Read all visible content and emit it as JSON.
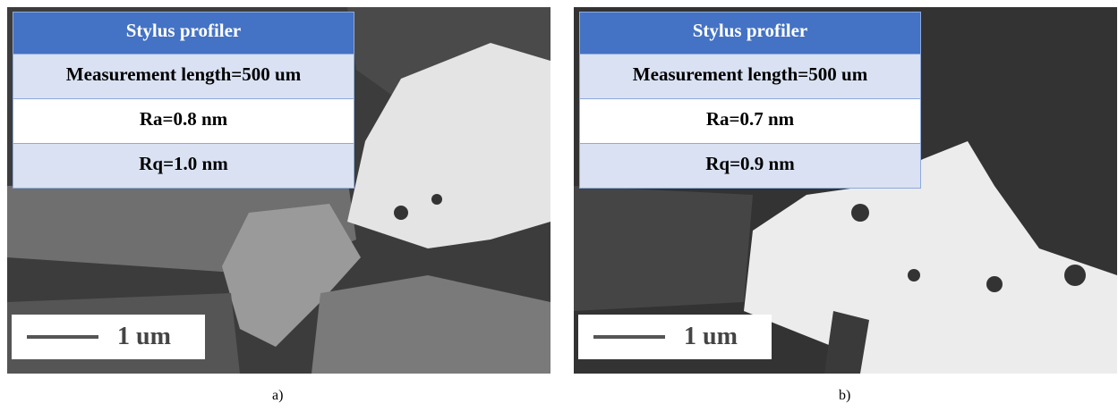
{
  "panels": [
    {
      "table": {
        "header": "Stylus profiler",
        "rows": [
          "Measurement length=500 um",
          "Ra=0.8 nm",
          "Rq=1.0 nm"
        ]
      },
      "scale_bar": "1 um",
      "caption": "a)"
    },
    {
      "table": {
        "header": "Stylus profiler",
        "rows": [
          "Measurement length=500 um",
          "Ra=0.7 nm",
          "Rq=0.9 nm"
        ]
      },
      "scale_bar": "1 um",
      "caption": "b)"
    }
  ]
}
